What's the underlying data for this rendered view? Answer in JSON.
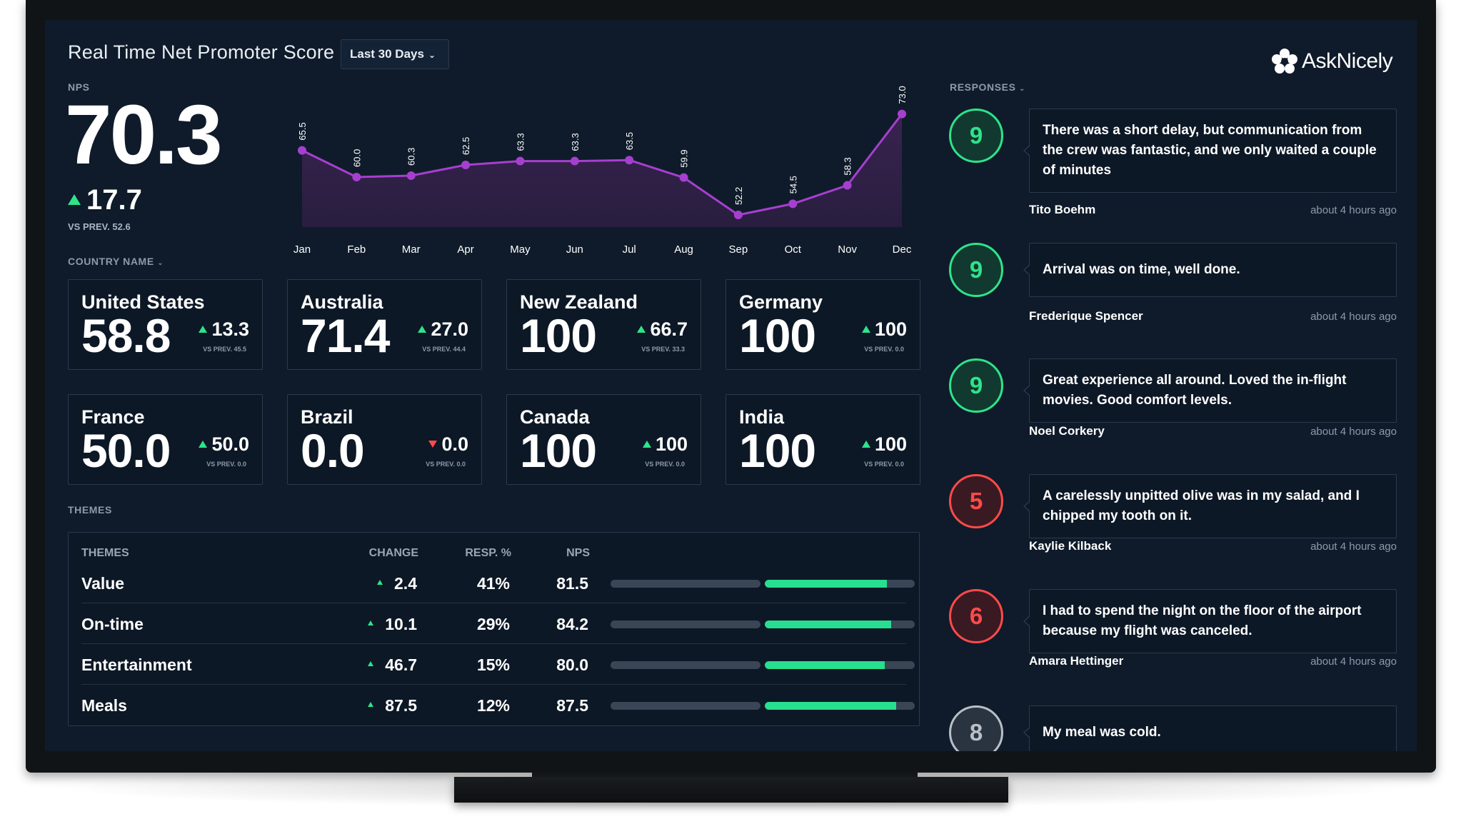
{
  "header": {
    "title": "Real Time Net Promoter Score",
    "period": "Last 30 Days"
  },
  "logo": {
    "text": "AskNicely"
  },
  "nps": {
    "label": "NPS",
    "value": "70.3",
    "delta": "17.7",
    "prev": "VS PREV. 52.6"
  },
  "chart_data": {
    "type": "area",
    "title": "",
    "categories": [
      "Jan",
      "Feb",
      "Mar",
      "Apr",
      "May",
      "Jun",
      "Jul",
      "Aug",
      "Sep",
      "Oct",
      "Nov",
      "Dec"
    ],
    "values": [
      65.5,
      60.0,
      60.3,
      62.5,
      63.3,
      63.3,
      63.5,
      59.9,
      52.2,
      54.5,
      58.3,
      73.0
    ],
    "data_labels": [
      "65.5",
      "60.0",
      "60.3",
      "62.5",
      "63.3",
      "63.3",
      "63.5",
      "59.9",
      "52.2",
      "54.5",
      "58.3",
      "73.0"
    ],
    "xlabel": "",
    "ylabel": "",
    "ylim": [
      50,
      75
    ],
    "grid": false,
    "color": "#a63fcf"
  },
  "countries": {
    "label": "COUNTRY NAME",
    "items": [
      {
        "name": "United States",
        "value": "58.8",
        "delta": "13.3",
        "prev": "VS PREV. 45.5",
        "dir": "up"
      },
      {
        "name": "Australia",
        "value": "71.4",
        "delta": "27.0",
        "prev": "VS PREV. 44.4",
        "dir": "up"
      },
      {
        "name": "New Zealand",
        "value": "100",
        "delta": "66.7",
        "prev": "VS PREV. 33.3",
        "dir": "up"
      },
      {
        "name": "Germany",
        "value": "100",
        "delta": "100",
        "prev": "VS PREV. 0.0",
        "dir": "up"
      },
      {
        "name": "France",
        "value": "50.0",
        "delta": "50.0",
        "prev": "VS PREV. 0.0",
        "dir": "up"
      },
      {
        "name": "Brazil",
        "value": "0.0",
        "delta": "0.0",
        "prev": "VS PREV. 0.0",
        "dir": "down"
      },
      {
        "name": "Canada",
        "value": "100",
        "delta": "100",
        "prev": "VS PREV. 0.0",
        "dir": "up"
      },
      {
        "name": "India",
        "value": "100",
        "delta": "100",
        "prev": "VS PREV. 0.0",
        "dir": "up"
      }
    ]
  },
  "themes": {
    "label": "THEMES",
    "headers": {
      "theme": "THEMES",
      "change": "CHANGE",
      "resp": "RESP. %",
      "nps": "NPS"
    },
    "rows": [
      {
        "name": "Value",
        "change": "2.4",
        "resp": "41%",
        "nps": "81.5",
        "fill": 0.815
      },
      {
        "name": "On-time",
        "change": "10.1",
        "resp": "29%",
        "nps": "84.2",
        "fill": 0.842
      },
      {
        "name": "Entertainment",
        "change": "46.7",
        "resp": "15%",
        "nps": "80.0",
        "fill": 0.8
      },
      {
        "name": "Meals",
        "change": "87.5",
        "resp": "12%",
        "nps": "87.5",
        "fill": 0.875
      }
    ]
  },
  "responses": {
    "label": "RESPONSES",
    "items": [
      {
        "score": "9",
        "color": "#2ee38a",
        "fill": "#12392f",
        "text": "There was a short delay, but communication from the crew was fantastic, and we only waited a couple of minutes",
        "name": "Tito Boehm",
        "time": "about 4 hours ago"
      },
      {
        "score": "9",
        "color": "#2ee38a",
        "fill": "#12392f",
        "text": "Arrival was on time, well done.",
        "name": "Frederique Spencer",
        "time": "about 4 hours ago"
      },
      {
        "score": "9",
        "color": "#2ee38a",
        "fill": "#12392f",
        "text": "Great experience all around. Loved the in-flight movies. Good comfort levels.",
        "name": "Noel Corkery",
        "time": "about 4 hours ago"
      },
      {
        "score": "5",
        "color": "#ff4a4a",
        "fill": "#3a1a22",
        "text": "A carelessly unpitted olive was in my salad, and I chipped my tooth on it.",
        "name": "Kaylie Kilback",
        "time": "about 4 hours ago"
      },
      {
        "score": "6",
        "color": "#ff4a4a",
        "fill": "#3a1a22",
        "text": "I had to spend the night on the floor of the airport because my flight was canceled.",
        "name": "Amara Hettinger",
        "time": "about 4 hours ago"
      },
      {
        "score": "8",
        "color": "#b8bfc8",
        "fill": "#2a3340",
        "text": "My meal was cold.",
        "name": "",
        "time": ""
      }
    ]
  }
}
